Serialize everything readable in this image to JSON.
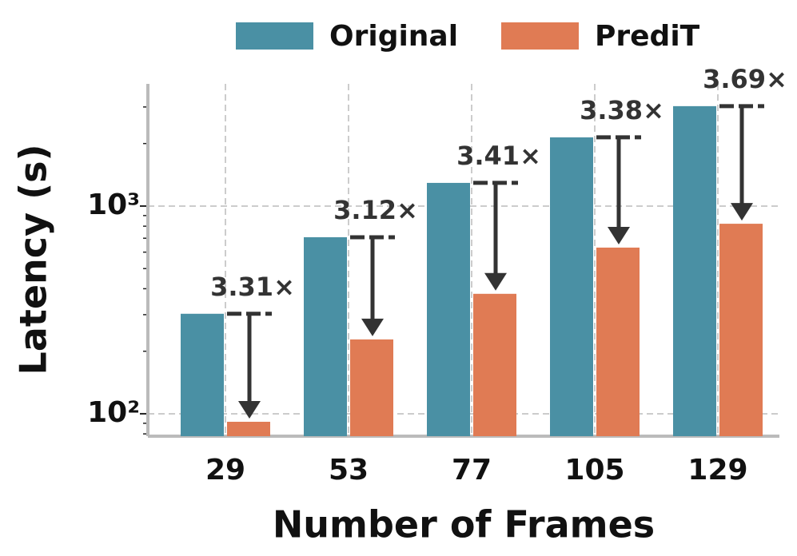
{
  "chart_data": {
    "type": "bar",
    "categories": [
      "29",
      "53",
      "77",
      "105",
      "129"
    ],
    "series": [
      {
        "name": "Original",
        "color": "#4a90a4",
        "values": [
          303,
          708,
          1293,
          2142,
          3027
        ]
      },
      {
        "name": "PrediT",
        "color": "#e07b54",
        "values": [
          91.5,
          228,
          378,
          631,
          822
        ]
      }
    ],
    "annotations": [
      "3.31×",
      "3.12×",
      "3.41×",
      "3.38×",
      "3.69×"
    ],
    "xlabel": "Number of Frames",
    "ylabel": "Latency (s)",
    "ylog": true,
    "ylim": [
      78,
      3875
    ],
    "yticks": [
      {
        "value": 100,
        "label": "10²"
      },
      {
        "value": 1000,
        "label": "10³"
      }
    ],
    "yminor": [
      80,
      90,
      200,
      300,
      400,
      500,
      600,
      700,
      800,
      900,
      2000,
      3000
    ],
    "grid": true,
    "legend": "top"
  }
}
